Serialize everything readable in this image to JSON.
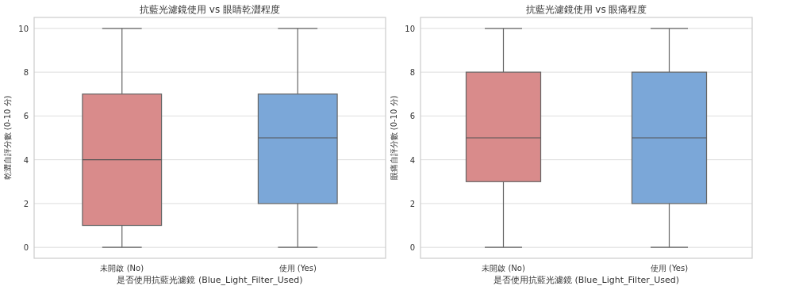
{
  "chart_data": [
    {
      "type": "box",
      "title": "抗藍光濾鏡使用 vs 眼睛乾澀程度",
      "xlabel": "是否使用抗藍光濾鏡 (Blue_Light_Filter_Used)",
      "ylabel": "乾澀自評分數 (0-10 分)",
      "categories": [
        "未開啟 (No)",
        "使用 (Yes)"
      ],
      "colors": [
        "#d98b8b",
        "#7ba7d8"
      ],
      "boxes": [
        {
          "low": 0,
          "q1": 1,
          "median": 4,
          "q3": 7,
          "high": 10
        },
        {
          "low": 0,
          "q1": 2,
          "median": 5,
          "q3": 7,
          "high": 10
        }
      ],
      "ylim": [
        -0.5,
        10.5
      ],
      "yticks": [
        0,
        2,
        4,
        6,
        8,
        10
      ],
      "grid": "y"
    },
    {
      "type": "box",
      "title": "抗藍光濾鏡使用 vs 眼痛程度",
      "xlabel": "是否使用抗藍光濾鏡 (Blue_Light_Filter_Used)",
      "ylabel": "眼痛自評分數 (0-10 分)",
      "categories": [
        "未開啟 (No)",
        "使用 (Yes)"
      ],
      "colors": [
        "#d98b8b",
        "#7ba7d8"
      ],
      "boxes": [
        {
          "low": 0,
          "q1": 3,
          "median": 5,
          "q3": 8,
          "high": 10
        },
        {
          "low": 0,
          "q1": 2,
          "median": 5,
          "q3": 8,
          "high": 10
        }
      ],
      "ylim": [
        -0.5,
        10.5
      ],
      "yticks": [
        0,
        2,
        4,
        6,
        8,
        10
      ],
      "grid": "y"
    }
  ]
}
